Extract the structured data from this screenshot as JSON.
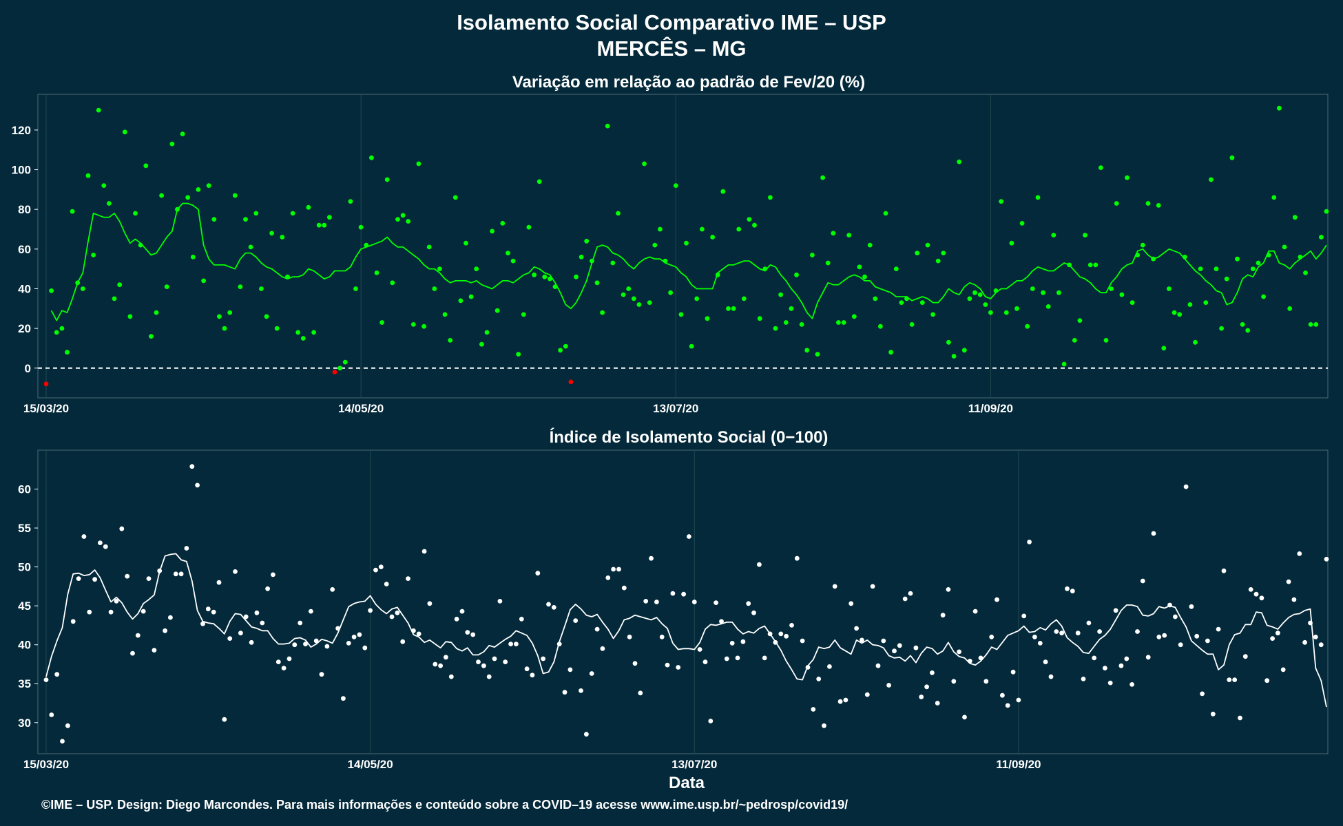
{
  "header": {
    "title_line1": "Isolamento Social Comparativo IME – USP",
    "title_line2": "MERCÊS – MG"
  },
  "footer": {
    "credit": "©IME – USP. Design: Diego Marcondes. Para mais informações e conteúdo sobre a COVID–19 acesse www.ime.usp.br/~pedrosp/covid19/"
  },
  "colors": {
    "background": "#04293a",
    "positive": "#00ff00",
    "negative": "#ff0000",
    "index_series": "#ffffff",
    "grid": "#1f4a52"
  },
  "chart_data": [
    {
      "type": "scatter",
      "title": "Variação em relação ao padrão de Fev/20 (%)",
      "xlabel": "",
      "ylabel": "",
      "x_start": "15/03/20",
      "x_end": "01/11/20",
      "x_ticks": [
        "15/03/20",
        "14/05/20",
        "13/07/20",
        "11/09/20"
      ],
      "ylim": [
        -15,
        138
      ],
      "y_ticks": [
        0,
        20,
        40,
        60,
        80,
        100,
        120
      ],
      "reference_line": 0,
      "grid": true,
      "series": [
        {
          "kind": "points",
          "values": [
            -8,
            39,
            18,
            20,
            8,
            79,
            43,
            40,
            97,
            57,
            130,
            92,
            83,
            35,
            42,
            119,
            26,
            78,
            62,
            102,
            16,
            28,
            87,
            41,
            113,
            80,
            118,
            86,
            56,
            90,
            44,
            92,
            75,
            26,
            20,
            28,
            87,
            41,
            75,
            61,
            78,
            40,
            26,
            68,
            20,
            66,
            46,
            78,
            18,
            15,
            81,
            18,
            72,
            72,
            76,
            -2,
            0,
            3,
            84,
            40,
            71,
            62,
            106,
            48,
            23,
            95,
            43,
            75,
            77,
            74,
            22,
            103,
            21,
            61,
            40,
            50,
            27,
            14,
            86,
            34,
            63,
            36,
            50,
            12,
            18,
            69,
            29,
            73,
            58,
            54,
            7,
            27,
            71,
            47,
            94,
            46,
            45,
            41,
            9,
            11,
            -7,
            46,
            56,
            64,
            54,
            43,
            28,
            122,
            53,
            78,
            37,
            40,
            35,
            32,
            103,
            33,
            62,
            70,
            54,
            38,
            92,
            27,
            63,
            11,
            35,
            70,
            25,
            66,
            47,
            89,
            30,
            30,
            70,
            35,
            75,
            72,
            25,
            50,
            86,
            20,
            37,
            23,
            30,
            47,
            22,
            9,
            57,
            7,
            96,
            53,
            68,
            23,
            23,
            67,
            26,
            51,
            46,
            62,
            35,
            21,
            78,
            8,
            50,
            33,
            35,
            22,
            58,
            33,
            62,
            27,
            54,
            58,
            13,
            6,
            104,
            9,
            35,
            38,
            37,
            32,
            28,
            39,
            84,
            28,
            63,
            30,
            73,
            21,
            40,
            86,
            38,
            31,
            67,
            38,
            2,
            52,
            14,
            24,
            67,
            52,
            52,
            101,
            14,
            40,
            83,
            37,
            96,
            33,
            57,
            62,
            83,
            55,
            82,
            10,
            40,
            28,
            27,
            56,
            32,
            13,
            50,
            33,
            95,
            50,
            20,
            45,
            106,
            55,
            22,
            19,
            50,
            53,
            36,
            57,
            86,
            131,
            61,
            30,
            76,
            56,
            48,
            22,
            22,
            66,
            79
          ],
          "comment": "daily variation (%), green when >= 0, red when < 0"
        },
        {
          "kind": "line",
          "name": "",
          "values": [
            29,
            24,
            29,
            28,
            35,
            43,
            48,
            64,
            78,
            77,
            76,
            76,
            78,
            74,
            68,
            63,
            65,
            63,
            60,
            57,
            58,
            62,
            66,
            69,
            80,
            83,
            83,
            82,
            80,
            62,
            55,
            52,
            52,
            52,
            51,
            50,
            55,
            58,
            58,
            56,
            53,
            51,
            50,
            48,
            46,
            45,
            46,
            46,
            47,
            50,
            49,
            47,
            45,
            46,
            49,
            49,
            49,
            51,
            56,
            60,
            61,
            62,
            63,
            64,
            66,
            63,
            61,
            61,
            59,
            57,
            55,
            52,
            50,
            50,
            48,
            45,
            43,
            44,
            44,
            44,
            43,
            44,
            42,
            41,
            40,
            42,
            44,
            44,
            43,
            45,
            47,
            48,
            51,
            50,
            48,
            47,
            43,
            38,
            32,
            30,
            33,
            38,
            44,
            53,
            61,
            62,
            61,
            58,
            57,
            55,
            52,
            50,
            53,
            55,
            56,
            55,
            55,
            53,
            52,
            51,
            48,
            46,
            42,
            40,
            40,
            40,
            40,
            48,
            50,
            52,
            52,
            53,
            54,
            54,
            52,
            50,
            49,
            52,
            51,
            47,
            44,
            40,
            37,
            33,
            28,
            25,
            33,
            38,
            43,
            42,
            42,
            44,
            46,
            47,
            46,
            44,
            44,
            41,
            40,
            39,
            38,
            36,
            36,
            36,
            34,
            35,
            36,
            35,
            33,
            33,
            36,
            40,
            38,
            37,
            41,
            43,
            42,
            40,
            36,
            35,
            38,
            40,
            40,
            42,
            44,
            44,
            46,
            49,
            51,
            50,
            49,
            49,
            51,
            53,
            52,
            49,
            46,
            45,
            43,
            40,
            38,
            38,
            43,
            46,
            50,
            52,
            53,
            59,
            60,
            57,
            55,
            56,
            58,
            60,
            59,
            58,
            55,
            52,
            49,
            47,
            44,
            42,
            39,
            38,
            32,
            33,
            38,
            45,
            47,
            46,
            51,
            53,
            59,
            59,
            53,
            52,
            50,
            53,
            55,
            57,
            59,
            55,
            58,
            62
          ]
        }
      ]
    },
    {
      "type": "scatter",
      "title": "Índice de Isolamento Social (0−100)",
      "xlabel": "Data",
      "ylabel": "",
      "x_start": "15/03/20",
      "x_end": "01/11/20",
      "x_ticks": [
        "15/03/20",
        "14/05/20",
        "13/07/20",
        "11/09/20"
      ],
      "ylim": [
        26,
        65
      ],
      "y_ticks": [
        30,
        35,
        40,
        45,
        50,
        55,
        60
      ],
      "grid": true,
      "series": [
        {
          "kind": "points",
          "values": [
            35.5,
            31.0,
            36.2,
            27.6,
            29.6,
            43.0,
            48.5,
            53.9,
            44.2,
            48.4,
            53.1,
            52.6,
            44.2,
            45.6,
            54.9,
            48.8,
            38.9,
            41.2,
            44.3,
            48.5,
            39.3,
            49.5,
            41.8,
            43.5,
            49.1,
            49.1,
            52.4,
            62.9,
            60.5,
            42.7,
            44.6,
            44.2,
            48.0,
            30.4,
            40.8,
            49.4,
            41.5,
            43.6,
            40.3,
            44.1,
            42.8,
            47.2,
            49.0,
            37.8,
            37.0,
            38.2,
            40.0,
            42.8,
            40.1,
            44.3,
            40.5,
            36.2,
            39.8,
            47.1,
            42.1,
            33.1,
            40.2,
            41.0,
            41.3,
            39.6,
            44.4,
            49.6,
            50.0,
            47.8,
            43.6,
            44.1,
            40.4,
            48.5,
            41.8,
            41.4,
            52.0,
            45.3,
            37.5,
            37.3,
            38.4,
            35.9,
            43.3,
            44.3,
            41.6,
            41.3,
            37.8,
            37.3,
            35.9,
            38.2,
            45.6,
            37.8,
            40.1,
            40.1,
            43.3,
            36.9,
            36.1,
            49.2,
            38.2,
            45.2,
            44.8,
            40.1,
            33.9,
            36.8,
            43.1,
            34.1,
            28.5,
            36.3,
            42.0,
            39.5,
            48.6,
            49.7,
            49.7,
            47.3,
            41.0,
            37.6,
            33.8,
            45.6,
            51.1,
            45.5,
            41.0,
            37.4,
            46.6,
            37.1,
            46.5,
            53.9,
            45.5,
            39.4,
            37.8,
            30.2,
            45.4,
            43.0,
            38.2,
            40.2,
            38.3,
            40.4,
            45.3,
            44.1,
            50.3,
            38.3,
            41.4,
            40.3,
            41.4,
            41.1,
            42.5,
            51.1,
            40.5,
            37.1,
            31.7,
            35.6,
            29.6,
            37.2,
            47.5,
            32.7,
            32.9,
            45.3,
            42.1,
            40.6,
            33.6,
            47.5,
            37.3,
            40.5,
            34.8,
            39.2,
            39.9,
            45.9,
            46.6,
            39.6,
            33.3,
            34.6,
            36.4,
            32.5,
            43.8,
            47.1,
            35.3,
            39.1,
            30.7,
            37.9,
            44.3,
            38.3,
            35.3,
            41.0,
            45.8,
            33.5,
            32.2,
            36.5,
            32.9,
            43.7,
            53.2,
            41.0,
            40.2,
            37.8,
            35.9,
            41.7,
            41.5,
            47.2,
            46.9,
            41.5,
            35.6,
            42.8,
            38.3,
            41.7,
            37.0,
            35.1,
            44.4,
            37.3,
            38.2,
            34.9,
            41.7,
            48.2,
            38.4,
            54.3,
            41.0,
            41.2,
            45.1,
            43.6,
            40.0,
            60.3,
            44.9,
            41.1,
            33.7,
            40.5,
            31.1,
            42.0,
            49.5,
            35.5,
            35.5,
            30.6,
            38.5,
            47.1,
            46.5,
            46.0,
            35.4,
            40.8,
            41.5,
            36.8,
            48.1,
            45.8,
            51.7,
            40.3,
            42.8,
            41.0,
            40.0,
            51.0
          ]
        },
        {
          "kind": "line",
          "name": "",
          "values": [
            35.9,
            38.5,
            40.5,
            42.2,
            46.5,
            49.1,
            49.2,
            48.9,
            49.0,
            49.6,
            48.6,
            47.0,
            45.5,
            46.1,
            45.4,
            44.2,
            43.3,
            44.0,
            45.3,
            45.8,
            46.4,
            49.4,
            51.4,
            51.6,
            51.7,
            50.9,
            50.7,
            48.2,
            44.4,
            43.0,
            42.8,
            42.7,
            42.1,
            41.4,
            43.0,
            44.0,
            43.9,
            43.1,
            42.3,
            42.1,
            41.8,
            41.8,
            40.8,
            40.1,
            40.1,
            40.2,
            40.8,
            40.9,
            40.6,
            39.7,
            40.1,
            40.7,
            40.5,
            40.2,
            41.5,
            43.2,
            44.9,
            45.3,
            45.5,
            45.6,
            46.3,
            45.2,
            44.5,
            44.0,
            44.6,
            44.8,
            43.8,
            42.8,
            41.3,
            41.0,
            40.3,
            40.6,
            40.1,
            39.6,
            40.4,
            40.3,
            39.5,
            39.2,
            39.6,
            38.7,
            38.7,
            39.1,
            39.9,
            39.7,
            40.2,
            40.7,
            41.1,
            41.8,
            41.5,
            41.2,
            40.2,
            38.6,
            36.3,
            36.5,
            37.8,
            40.4,
            42.4,
            44.5,
            45.2,
            44.6,
            43.8,
            43.6,
            43.9,
            42.9,
            42.0,
            40.8,
            41.8,
            43.2,
            43.4,
            43.8,
            43.6,
            43.4,
            43.2,
            43.5,
            42.7,
            42.1,
            40.2,
            39.4,
            39.5,
            39.5,
            39.4,
            40.3,
            42.0,
            42.6,
            42.5,
            42.7,
            42.9,
            42.9,
            42.0,
            41.4,
            41.7,
            41.5,
            42.1,
            42.4,
            41.4,
            40.4,
            39.3,
            37.9,
            36.8,
            35.6,
            35.5,
            37.3,
            38.1,
            39.7,
            39.5,
            39.7,
            40.6,
            39.6,
            39.2,
            38.8,
            40.6,
            40.2,
            40.6,
            40.0,
            39.9,
            39.6,
            38.6,
            38.3,
            38.4,
            37.9,
            38.6,
            37.7,
            38.9,
            39.7,
            39.5,
            38.8,
            39.2,
            40.3,
            39.1,
            38.5,
            38.3,
            37.6,
            37.4,
            37.9,
            38.7,
            39.7,
            39.4,
            40.3,
            41.2,
            41.5,
            41.8,
            42.4,
            41.6,
            41.7,
            42.2,
            41.9,
            42.7,
            43.2,
            42.4,
            40.9,
            40.3,
            39.8,
            39.0,
            38.9,
            39.8,
            40.7,
            41.2,
            42.0,
            43.2,
            44.4,
            45.1,
            45.1,
            44.9,
            43.8,
            43.7,
            44.0,
            44.9,
            44.7,
            45.0,
            44.8,
            43.5,
            42.3,
            40.5,
            39.9,
            39.3,
            38.8,
            38.8,
            36.8,
            37.4,
            40.0,
            41.3,
            41.5,
            42.6,
            42.6,
            44.2,
            44.1,
            42.5,
            42.3,
            42.0,
            42.8,
            43.5,
            43.9,
            44.0,
            44.4,
            44.6,
            37.0,
            35.4,
            32.0
          ]
        }
      ]
    }
  ]
}
